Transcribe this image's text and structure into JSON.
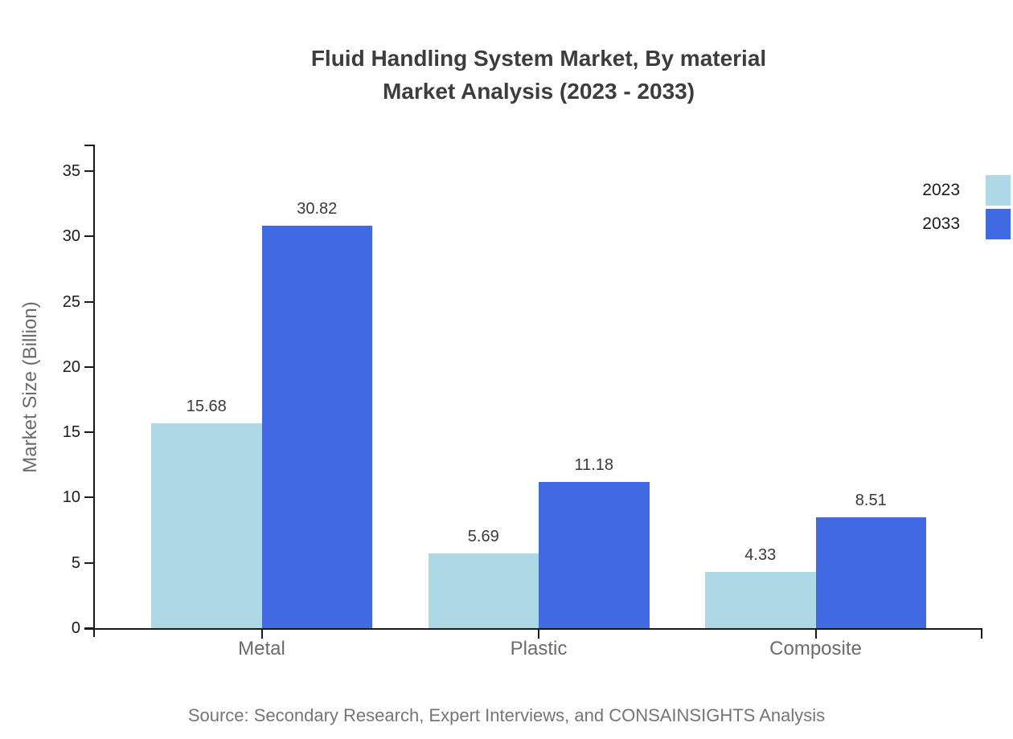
{
  "title": {
    "line1": "Fluid Handling System Market, By material",
    "line2": "Market Analysis (2023 - 2033)"
  },
  "source": "Source: Secondary Research, Expert Interviews, and CONSAINSIGHTS Analysis",
  "chart_data": {
    "type": "bar",
    "categories": [
      "Metal",
      "Plastic",
      "Composite"
    ],
    "series": [
      {
        "name": "2023",
        "color": "#ADD8E6",
        "values": [
          15.68,
          5.69,
          4.33
        ]
      },
      {
        "name": "2033",
        "color": "#4169E1",
        "values": [
          30.82,
          11.18,
          8.51
        ]
      }
    ],
    "value_labels": [
      "15.68",
      "30.82",
      "5.69",
      "11.18",
      "4.33",
      "8.51"
    ],
    "title": "Fluid Handling System Market, By material Market Analysis (2023 - 2033)",
    "xlabel": "",
    "ylabel": "Market Size (Billion)",
    "ylim": [
      0,
      37
    ],
    "yticks": [
      0,
      5,
      10,
      15,
      20,
      25,
      30,
      35
    ],
    "grid": false,
    "legend_position": "top-right",
    "value_labels_shown": true
  }
}
